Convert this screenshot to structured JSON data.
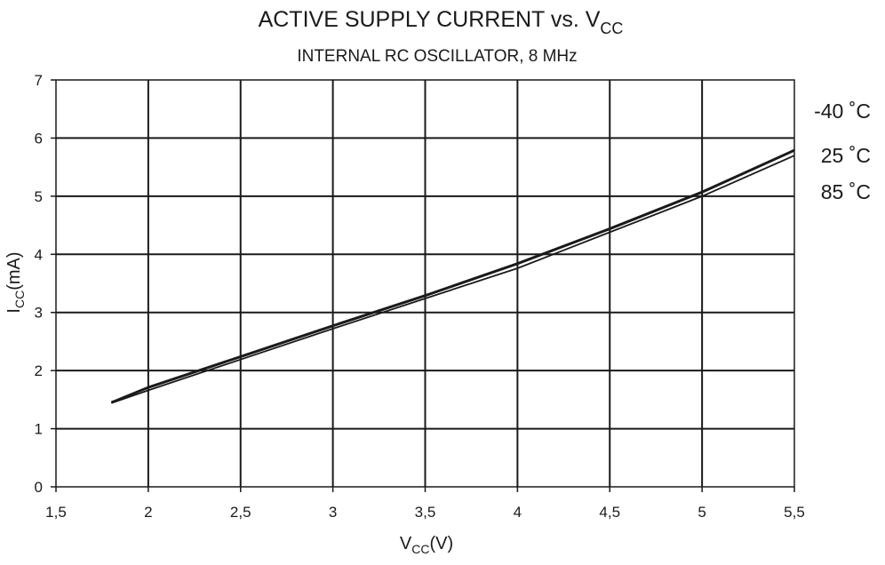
{
  "chart_data": {
    "type": "line",
    "title_main": "ACTIVE SUPPLY CURRENT vs. V",
    "title_sub": "CC",
    "subtitle": "INTERNAL RC OSCILLATOR, 8 MHz",
    "xlabel_main": "V",
    "xlabel_sub": "CC",
    "xlabel_unit": "(V)",
    "ylabel_main": "I",
    "ylabel_sub": "CC",
    "ylabel_unit": "(mA)",
    "xlim": [
      1.5,
      5.5
    ],
    "ylim": [
      0,
      7
    ],
    "x_ticks": [
      1.5,
      2,
      2.5,
      3,
      3.5,
      4,
      4.5,
      5,
      5.5
    ],
    "x_tick_labels": [
      "1,5",
      "2",
      "2,5",
      "3",
      "3,5",
      "4",
      "4,5",
      "5",
      "5,5"
    ],
    "y_ticks": [
      0,
      1,
      2,
      3,
      4,
      5,
      6,
      7
    ],
    "y_tick_labels": [
      "0",
      "1",
      "2",
      "3",
      "4",
      "5",
      "6",
      "7"
    ],
    "grid": true,
    "series": [
      {
        "name": "-40 ˚C",
        "x": [
          1.8,
          2.0,
          2.5,
          3.0,
          3.5,
          4.0,
          4.5,
          5.0,
          5.5
        ],
        "values": [
          1.46,
          1.72,
          2.25,
          2.78,
          3.3,
          3.85,
          4.45,
          5.08,
          5.8
        ]
      },
      {
        "name": "25 ˚C",
        "x": [
          1.8,
          2.0,
          2.5,
          3.0,
          3.5,
          4.0,
          4.5,
          5.0,
          5.5
        ],
        "values": [
          1.45,
          1.7,
          2.23,
          2.76,
          3.28,
          3.83,
          4.43,
          5.06,
          5.78
        ]
      },
      {
        "name": "85 ˚C",
        "x": [
          1.8,
          2.0,
          2.5,
          3.0,
          3.5,
          4.0,
          4.5,
          5.0,
          5.5
        ],
        "values": [
          1.44,
          1.66,
          2.19,
          2.72,
          3.24,
          3.76,
          4.38,
          5.0,
          5.7
        ]
      }
    ]
  }
}
